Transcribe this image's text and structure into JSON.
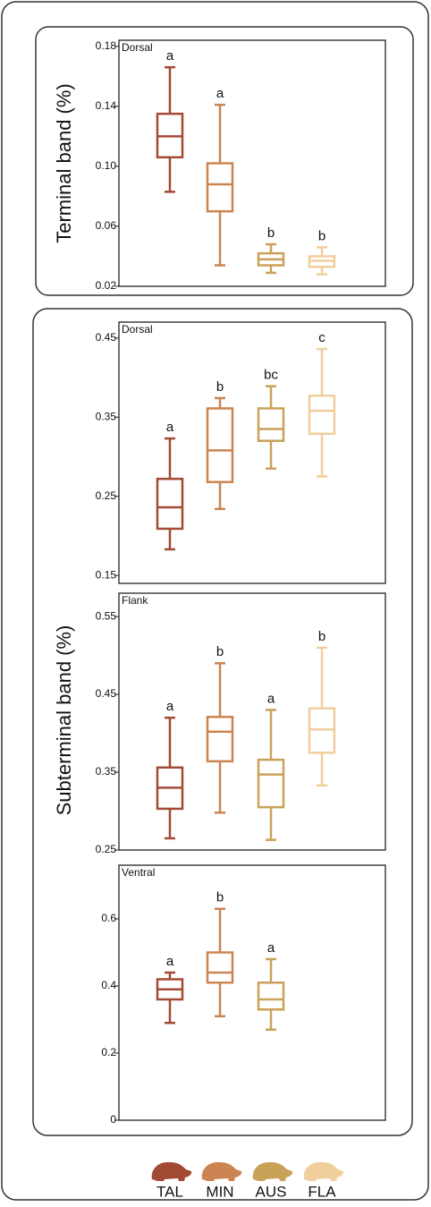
{
  "groups": [
    {
      "name": "TAL",
      "color": "#a34a35"
    },
    {
      "name": "MIN",
      "color": "#cc8552"
    },
    {
      "name": "AUS",
      "color": "#c9a25a"
    },
    {
      "name": "FLA",
      "color": "#f0cf9c"
    }
  ],
  "chart_data": [
    {
      "type": "box",
      "y_title": "Terminal band (%)",
      "panel_label": "Dorsal",
      "ylim": [
        0.02,
        0.184
      ],
      "yticks": [
        0.02,
        0.06,
        {
          "value": 0.1,
          "label": "0.10"
        },
        0.14,
        0.18
      ],
      "min": [
        0.083,
        0.034,
        0.029,
        0.028
      ],
      "q1": [
        0.106,
        0.07,
        0.034,
        0.033
      ],
      "median": [
        0.12,
        0.088,
        0.038,
        0.037
      ],
      "q3": [
        0.135,
        0.102,
        0.042,
        0.04
      ],
      "max": [
        0.166,
        0.141,
        0.048,
        0.046
      ],
      "letters": [
        "a",
        "a",
        "b",
        "b"
      ]
    },
    {
      "type": "box",
      "y_title": "Subterminal band  (%)",
      "panel_label": "Dorsal",
      "ylim": [
        0.14,
        0.47
      ],
      "yticks": [
        0.15,
        0.25,
        0.35,
        0.45
      ],
      "min": [
        0.183,
        0.234,
        0.285,
        0.275
      ],
      "q1": [
        0.209,
        0.268,
        0.32,
        0.329
      ],
      "median": [
        0.236,
        0.308,
        0.335,
        0.358
      ],
      "q3": [
        0.272,
        0.361,
        0.361,
        0.377
      ],
      "max": [
        0.323,
        0.374,
        0.389,
        0.436
      ],
      "letters": [
        "a",
        "b",
        "bc",
        "c"
      ]
    },
    {
      "type": "box",
      "panel_label": "Flank",
      "ylim": [
        0.25,
        0.58
      ],
      "yticks": [
        0.25,
        0.35,
        0.45,
        0.55
      ],
      "min": [
        0.265,
        0.298,
        0.263,
        0.333
      ],
      "q1": [
        0.303,
        0.364,
        0.305,
        0.375
      ],
      "median": [
        0.33,
        0.402,
        0.347,
        0.405
      ],
      "q3": [
        0.356,
        0.421,
        0.366,
        0.432
      ],
      "max": [
        0.42,
        0.49,
        0.43,
        0.51
      ],
      "letters": [
        "a",
        "b",
        "a",
        "b"
      ]
    },
    {
      "type": "box",
      "panel_label": "Ventral",
      "ylim": [
        0,
        0.76
      ],
      "yticks": [
        0,
        0.2,
        0.4,
        0.6
      ],
      "min": [
        0.29,
        0.31,
        0.27,
        null
      ],
      "q1": [
        0.36,
        0.41,
        0.33,
        null
      ],
      "median": [
        0.39,
        0.44,
        0.36,
        null
      ],
      "q3": [
        0.42,
        0.5,
        0.41,
        null
      ],
      "max": [
        0.44,
        0.63,
        0.48,
        null
      ],
      "letters": [
        "a",
        "b",
        "a",
        null
      ]
    }
  ]
}
